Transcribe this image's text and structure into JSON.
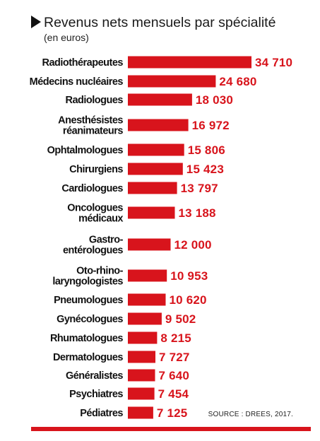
{
  "colors": {
    "bar": "#d8141c",
    "text": "#111111"
  },
  "chart_data": {
    "type": "bar",
    "orientation": "horizontal",
    "title": "Revenus nets mensuels par spécialité",
    "subtitle": "(en euros)",
    "source": "SOURCE : DREES, 2017.",
    "grid": false,
    "categories": [
      [
        "Radiothérapeutes"
      ],
      [
        "Médecins nucléaires"
      ],
      [
        "Radiologues"
      ],
      [
        "Anesthésistes",
        "réanimateurs"
      ],
      [
        "Ophtalmologues"
      ],
      [
        "Chirurgiens"
      ],
      [
        "Cardiologues"
      ],
      [
        "Oncologues",
        "médicaux"
      ],
      [
        "Gastro-",
        "entérologues"
      ],
      [
        "Oto-rhino-",
        "laryngologistes"
      ],
      [
        "Pneumologues"
      ],
      [
        "Gynécologues"
      ],
      [
        "Rhumatologues"
      ],
      [
        "Dermatologues"
      ],
      [
        "Généralistes"
      ],
      [
        "Psychiatres"
      ],
      [
        "Pédiatres"
      ]
    ],
    "values": [
      34710,
      24680,
      18030,
      16972,
      15806,
      15423,
      13797,
      13188,
      12000,
      10953,
      10620,
      9502,
      8215,
      7727,
      7640,
      7454,
      7125
    ],
    "value_labels": [
      "34 710",
      "24 680",
      "18 030",
      "16 972",
      "15 806",
      "15 423",
      "13 797",
      "13 188",
      "12 000",
      "10 953",
      "10 620",
      "9 502",
      "8 215",
      "7 727",
      "7 640",
      "7 454",
      "7 125"
    ]
  }
}
